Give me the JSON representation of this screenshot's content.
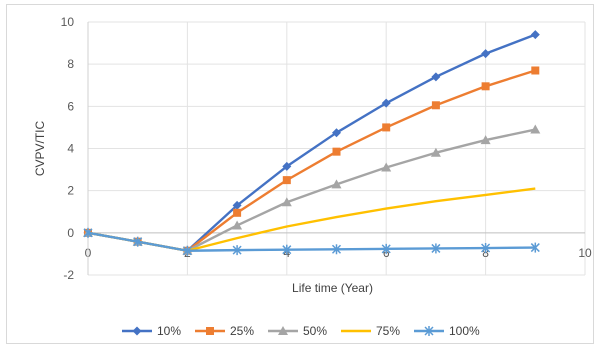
{
  "chart_data": {
    "type": "line",
    "title": "",
    "xlabel": "Life time (Year)",
    "ylabel": "CVPV/TIC",
    "xlim": [
      0,
      10
    ],
    "ylim": [
      -2,
      10
    ],
    "xticks": [
      0,
      2,
      4,
      6,
      8,
      10
    ],
    "yticks": [
      -2,
      0,
      2,
      4,
      6,
      8,
      10
    ],
    "grid": true,
    "legend_position": "bottom",
    "series": [
      {
        "name": "10%",
        "color": "#4472C4",
        "marker": "diamond",
        "x": [
          0,
          1,
          2,
          3,
          4,
          5,
          6,
          7,
          8,
          9
        ],
        "y": [
          0,
          -0.42,
          -0.85,
          1.3,
          3.15,
          4.75,
          6.15,
          7.4,
          8.5,
          9.4
        ]
      },
      {
        "name": "25%",
        "color": "#ED7D31",
        "marker": "square",
        "x": [
          0,
          1,
          2,
          3,
          4,
          5,
          6,
          7,
          8,
          9
        ],
        "y": [
          0,
          -0.42,
          -0.85,
          0.95,
          2.5,
          3.85,
          5.0,
          6.05,
          6.95,
          7.7
        ]
      },
      {
        "name": "50%",
        "color": "#A5A5A5",
        "marker": "triangle",
        "x": [
          0,
          1,
          2,
          3,
          4,
          5,
          6,
          7,
          8,
          9
        ],
        "y": [
          0,
          -0.42,
          -0.85,
          0.35,
          1.45,
          2.3,
          3.1,
          3.8,
          4.4,
          4.9
        ]
      },
      {
        "name": "75%",
        "color": "#FFC000",
        "marker": "none",
        "x": [
          0,
          1,
          2,
          3,
          4,
          5,
          6,
          7,
          8,
          9
        ],
        "y": [
          0,
          -0.42,
          -0.85,
          -0.25,
          0.3,
          0.75,
          1.15,
          1.5,
          1.8,
          2.1
        ]
      },
      {
        "name": "100%",
        "color": "#5B9BD5",
        "marker": "star",
        "x": [
          0,
          1,
          2,
          3,
          4,
          5,
          6,
          7,
          8,
          9
        ],
        "y": [
          0,
          -0.42,
          -0.85,
          -0.82,
          -0.8,
          -0.78,
          -0.76,
          -0.74,
          -0.72,
          -0.7
        ]
      }
    ]
  }
}
